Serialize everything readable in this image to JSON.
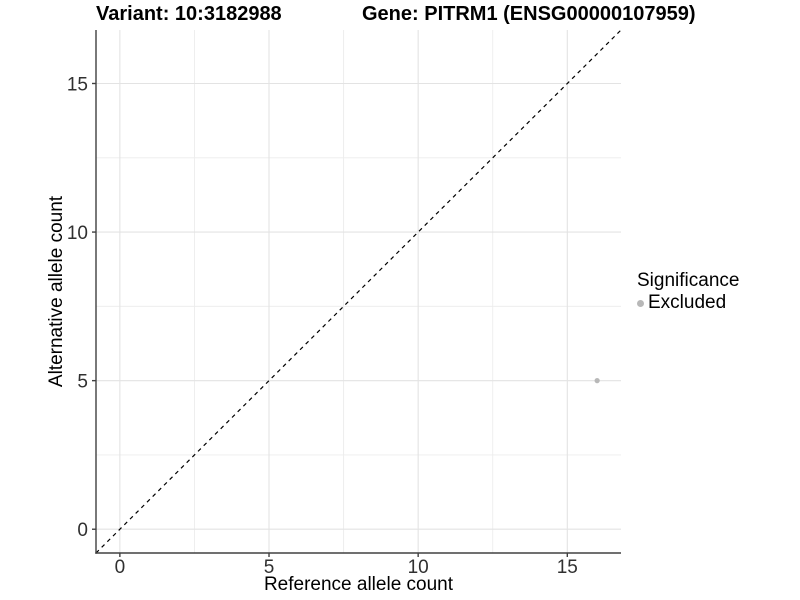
{
  "chart_data": {
    "type": "scatter",
    "title_left": "Variant: 10:3182988",
    "title_right": "Gene: PITRM1 (ENSG00000107959)",
    "xlabel": "Reference allele count",
    "ylabel": "Alternative allele count",
    "xlim": [
      -0.8,
      16.8
    ],
    "ylim": [
      -0.8,
      16.8
    ],
    "x_major_ticks": [
      0,
      5,
      10,
      15
    ],
    "y_major_ticks": [
      0,
      5,
      10,
      15
    ],
    "x_minor_gridlines": [
      2.5,
      7.5,
      12.5
    ],
    "y_minor_gridlines": [
      2.5,
      7.5,
      12.5
    ],
    "grid": "major+minor",
    "reference_line": {
      "type": "identity-diagonal",
      "style": "dashed",
      "color": "#000000"
    },
    "series": [
      {
        "name": "Excluded",
        "color": "#b8b8b8",
        "points": [
          {
            "x": 16,
            "y": 5
          }
        ]
      }
    ],
    "legend": {
      "title": "Significance",
      "position": "right",
      "items": [
        {
          "label": "Excluded",
          "color": "#b8b8b8"
        }
      ]
    },
    "colors": {
      "grid_major": "#e3e3e3",
      "grid_minor": "#ececec",
      "axis_line": "#404040",
      "tick_text": "#303030"
    }
  }
}
